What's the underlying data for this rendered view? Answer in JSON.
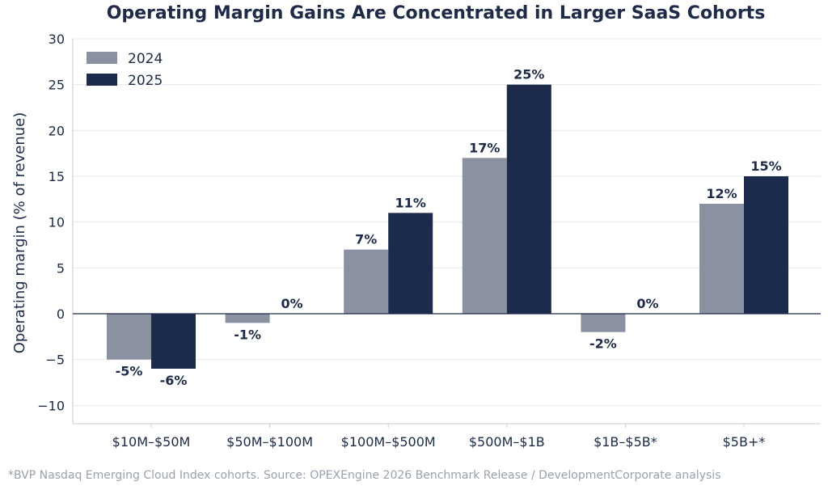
{
  "chart_data": {
    "type": "bar",
    "title": "Operating Margin Gains Are Concentrated in Larger SaaS Cohorts",
    "xlabel": "",
    "ylabel": "Operating margin (% of revenue)",
    "categories": [
      "$10M–$50M",
      "$50M–$100M",
      "$100M–$500M",
      "$500M–$1B",
      "$1B–$5B*",
      "$5B+*"
    ],
    "series": [
      {
        "name": "2024",
        "values": [
          -5,
          -1,
          7,
          17,
          -2,
          12
        ],
        "labels": [
          "-5%",
          "-1%",
          "7%",
          "17%",
          "-2%",
          "12%"
        ],
        "color": "#8a91a1"
      },
      {
        "name": "2025",
        "values": [
          -6,
          0,
          11,
          25,
          0,
          15
        ],
        "labels": [
          "-6%",
          "0%",
          "11%",
          "25%",
          "0%",
          "15%"
        ],
        "color": "#1c2a4b"
      }
    ],
    "ylim": [
      -12,
      30
    ],
    "yticks": [
      -10,
      -5,
      0,
      5,
      10,
      15,
      20,
      25,
      30
    ],
    "ytick_labels": [
      "−10",
      "−5",
      "0",
      "5",
      "10",
      "15",
      "20",
      "25",
      "30"
    ],
    "grid": "horizontal",
    "legend_position": "top-left"
  },
  "footnote": "*BVP Nasdaq Emerging Cloud Index cohorts. Source: OPEXEngine 2026 Benchmark Release / DevelopmentCorporate analysis"
}
